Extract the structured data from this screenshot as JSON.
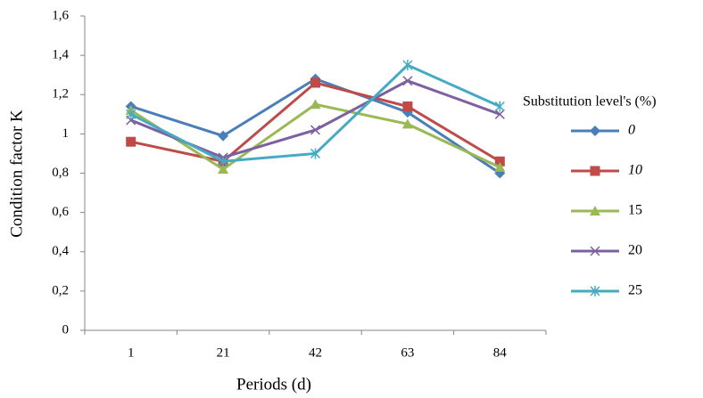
{
  "chart_data": {
    "type": "line",
    "x_label": "Periods (d)",
    "y_label": "Condition  factor  K",
    "legend_title": "Substitution level's (%)",
    "categories": [
      "1",
      "21",
      "42",
      "63",
      "84"
    ],
    "ylim": [
      0,
      1.6
    ],
    "yticks": [
      0,
      {
        "value": 0.2,
        "label": "0,2"
      },
      {
        "value": 0.4,
        "label": "0,4"
      },
      {
        "value": 0.6,
        "label": "0,6"
      },
      {
        "value": 0.8,
        "label": "0,8"
      },
      1,
      {
        "value": 1.2,
        "label": "1,2"
      },
      {
        "value": 1.4,
        "label": "1,4"
      },
      {
        "value": 1.6,
        "label": "1,6"
      }
    ],
    "grid": false,
    "legend": "right",
    "series": [
      {
        "name": "0",
        "color": "#4a7ebb",
        "marker": "diamond",
        "values": [
          1.14,
          0.99,
          1.28,
          1.11,
          0.8
        ]
      },
      {
        "name": "10",
        "color": "#be4b48",
        "marker": "square",
        "values": [
          0.96,
          0.86,
          1.26,
          1.14,
          0.86
        ]
      },
      {
        "name": "15",
        "color": "#98b954",
        "marker": "triangle",
        "values": [
          1.12,
          0.82,
          1.15,
          1.05,
          0.83
        ]
      },
      {
        "name": "20",
        "color": "#7d60a0",
        "marker": "x",
        "values": [
          1.07,
          0.88,
          1.02,
          1.27,
          1.1
        ]
      },
      {
        "name": "25",
        "color": "#46aac5",
        "marker": "star",
        "values": [
          1.1,
          0.86,
          0.9,
          1.35,
          1.14
        ]
      }
    ]
  }
}
